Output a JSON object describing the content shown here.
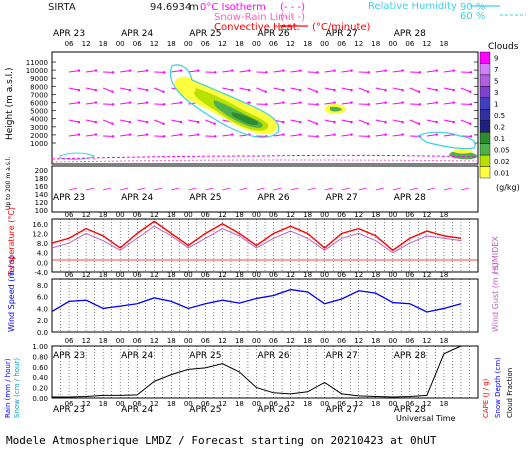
{
  "header": {
    "station": "SIRTA",
    "altitude": "94.6934",
    "altitude_unit": "m",
    "isotherm_label": "0°C Isotherm",
    "isotherm_dash": "(- - -)",
    "snow_rain_label": "Snow-Rain Limit",
    "snow_rain_dash": "(- - -)",
    "convective_label": "Convective Heat.",
    "convective_unit": "(°C/minute)",
    "rh_label": "Relative Humidity",
    "rh_90": "90 %",
    "rh_60": "60 %"
  },
  "footer": {
    "caption": "Modele Atmospherique LMDZ / Forecast starting on 20210423 at 0hUT",
    "universal_time": "Universal Time"
  },
  "days": [
    "APR 23",
    "APR 24",
    "APR 25",
    "APR 26",
    "APR 27",
    "APR 28"
  ],
  "hours": [
    "06",
    "12",
    "18",
    "00",
    "06",
    "12",
    "18",
    "00",
    "06",
    "12",
    "18",
    "00",
    "06",
    "12",
    "18",
    "00",
    "06",
    "12",
    "18",
    "00",
    "06",
    "12",
    "18"
  ],
  "colorbar": {
    "title": "Clouds",
    "unit": "(g/kg)",
    "labels": [
      "9",
      "7",
      "5",
      "3",
      "1",
      "0.5",
      "0.2",
      "0.1",
      "0.05",
      "0.02",
      "0.01"
    ],
    "colors": [
      "#ff00ff",
      "#d080ff",
      "#b060e0",
      "#8040d0",
      "#4040c0",
      "#3030a0",
      "#202080",
      "#2e8b2e",
      "#50b050",
      "#b8e000",
      "#ffff40"
    ]
  },
  "panels": {
    "height_axis_label": "Height (m a.s.l.)",
    "height_axis_label2": "Up to 200 m a.s.l.",
    "height_ticks": [
      "11000",
      "10000",
      "9000",
      "8000",
      "7000",
      "6000",
      "5000",
      "4000",
      "3000",
      "2000",
      "1000"
    ],
    "low_ticks": [
      "200",
      "180",
      "160",
      "140",
      "120",
      "100"
    ],
    "temp_label": "Temperature (°C)",
    "temp_ticks": [
      "16.0",
      "12.0",
      "8.0",
      "4.0",
      "0.0",
      "-4.0"
    ],
    "humidex_label": "HUMIDEX",
    "wind_label": "Wind Speed (m / s)",
    "wind_ticks": [
      "8.0",
      "6.0",
      "4.0",
      "2.0",
      "0.0"
    ],
    "gust_label": "Wind Gust (m / s)",
    "rain_label1": "Rain (mm / hour)",
    "rain_label2": "Snow (cm / hour)",
    "rain_ticks": [
      "1.00",
      "0.80",
      "0.60",
      "0.40",
      "0.20",
      "0.00"
    ],
    "cape_label": "CAPE (J / g)",
    "snowdepth_label": "Snow Depth (cm)",
    "cloudfrac_label": "Cloud Fraction"
  },
  "chart_data": [
    {
      "type": "line",
      "title": "Temperature",
      "ylabel": "Temperature (°C)",
      "ylim": [
        -4,
        18
      ],
      "x_hours": [
        0,
        6,
        12,
        18,
        24,
        30,
        36,
        42,
        48,
        54,
        60,
        66,
        72,
        78,
        84,
        90,
        96,
        102,
        108,
        114,
        120,
        126,
        132,
        138,
        144
      ],
      "series": [
        {
          "name": "Temperature",
          "color": "#ff0000",
          "values": [
            8,
            10,
            14,
            11,
            6,
            12,
            17,
            12,
            7,
            12,
            16,
            12,
            7,
            12,
            15,
            12,
            6,
            12,
            14,
            11,
            5,
            10,
            13,
            11,
            10
          ]
        },
        {
          "name": "HUMIDEX",
          "color": "#c060c0",
          "values": [
            6,
            8,
            12,
            9,
            5,
            10,
            15,
            11,
            6,
            10,
            14,
            11,
            6,
            10,
            13,
            10,
            5,
            10,
            12,
            9,
            4,
            8,
            11,
            10,
            9
          ]
        }
      ]
    },
    {
      "type": "line",
      "title": "Wind Speed",
      "ylabel": "Wind Speed (m / s)",
      "ylim": [
        0,
        9
      ],
      "x_hours": [
        0,
        6,
        12,
        18,
        24,
        30,
        36,
        42,
        48,
        54,
        60,
        66,
        72,
        78,
        84,
        90,
        96,
        102,
        108,
        114,
        120,
        126,
        132,
        138,
        144
      ],
      "series": [
        {
          "name": "Wind Speed",
          "color": "#0000ff",
          "values": [
            3.5,
            5.2,
            5.4,
            4.0,
            4.4,
            4.8,
            5.8,
            5.2,
            4.0,
            4.8,
            5.4,
            4.9,
            5.7,
            6.2,
            7.2,
            6.8,
            4.8,
            5.6,
            7.0,
            6.6,
            5.0,
            4.8,
            3.4,
            4.0,
            4.8
          ]
        }
      ]
    },
    {
      "type": "line",
      "title": "Cloud Fraction",
      "ylabel": "Rain (mm / hour)",
      "ylim": [
        0,
        1
      ],
      "x_hours": [
        0,
        6,
        12,
        18,
        24,
        30,
        36,
        42,
        48,
        54,
        60,
        66,
        72,
        78,
        84,
        90,
        96,
        102,
        108,
        114,
        120,
        126,
        132,
        138,
        144
      ],
      "series": [
        {
          "name": "Cloud Fraction",
          "color": "#000000",
          "values": [
            0.02,
            0.02,
            0.03,
            0.05,
            0.05,
            0.06,
            0.32,
            0.45,
            0.55,
            0.58,
            0.66,
            0.5,
            0.2,
            0.1,
            0.08,
            0.12,
            0.3,
            0.08,
            0.04,
            0.03,
            0.02,
            0.03,
            0.05,
            0.85,
            1.0
          ]
        }
      ]
    }
  ]
}
